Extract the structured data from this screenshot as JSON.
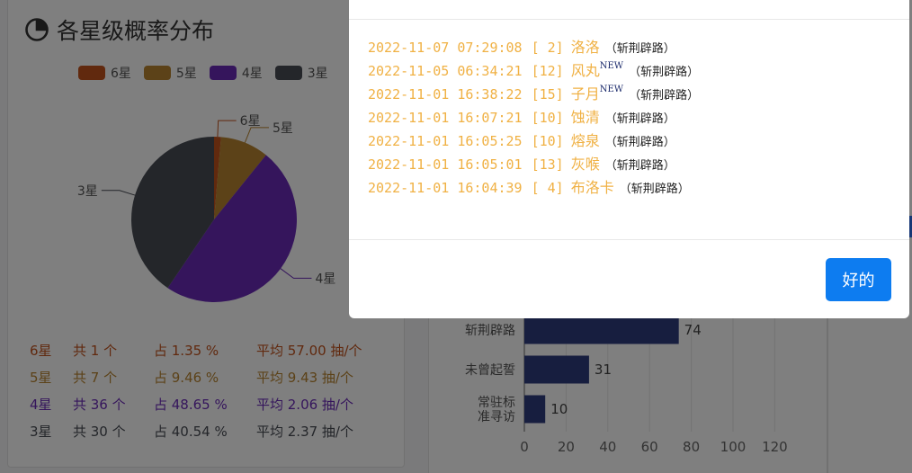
{
  "left_card": {
    "title": "各星级概率分布",
    "icon": "pie-chart-icon",
    "legend": [
      {
        "label": "6星",
        "color": "#c2521c"
      },
      {
        "label": "5星",
        "color": "#b88430"
      },
      {
        "label": "4星",
        "color": "#6b2bb8"
      },
      {
        "label": "3星",
        "color": "#484c55"
      }
    ],
    "stats": [
      {
        "name": "6星",
        "count": "共 1 个",
        "pct": "占 1.35 %",
        "avg": "平均 57.00 抽/个",
        "color": "#c2521c"
      },
      {
        "name": "5星",
        "count": "共 7 个",
        "pct": "占 9.46 %",
        "avg": "平均 9.43 抽/个",
        "color": "#b88430"
      },
      {
        "name": "4星",
        "count": "共 36 个",
        "pct": "占 48.65 %",
        "avg": "平均 2.06 抽/个",
        "color": "#6b2bb8"
      },
      {
        "name": "3星",
        "count": "共 30 个",
        "pct": "占 40.54 %",
        "avg": "平均 2.37 抽/个",
        "color": "#484c55"
      }
    ]
  },
  "chart_data": [
    {
      "type": "pie",
      "categories": [
        "6星",
        "5星",
        "4星",
        "3星"
      ],
      "values": [
        1,
        7,
        36,
        30
      ],
      "percents": [
        1.35,
        9.46,
        48.65,
        40.54
      ],
      "colors": [
        "#c2521c",
        "#b88430",
        "#6b2bb8",
        "#484c55"
      ],
      "legend": "top"
    },
    {
      "type": "bar",
      "orientation": "horizontal",
      "categories": [
        "斩荆辟路",
        "未曾起誓",
        "常驻标准寻访"
      ],
      "category_labels": [
        [
          "斩荆辟路"
        ],
        [
          "未曾起誓"
        ],
        [
          "常驻标",
          "准寻访"
        ]
      ],
      "values": [
        74,
        31,
        10
      ],
      "xlim": [
        0,
        120
      ],
      "xticks": [
        0,
        20,
        40,
        60,
        80,
        100,
        120
      ],
      "color": "#2e3d7f",
      "grid": true
    }
  ],
  "modal": {
    "records": [
      {
        "time": "2022-11-07 07:29:08",
        "rank": "[ 2]",
        "name": "洛洛",
        "is_new": false,
        "pool": "（斩荆辟路）"
      },
      {
        "time": "2022-11-05 06:34:21",
        "rank": "[12]",
        "name": "风丸",
        "is_new": true,
        "pool": "（斩荆辟路）"
      },
      {
        "time": "2022-11-01 16:38:22",
        "rank": "[15]",
        "name": "子月",
        "is_new": true,
        "pool": "（斩荆辟路）"
      },
      {
        "time": "2022-11-01 16:07:21",
        "rank": "[10]",
        "name": "蚀清",
        "is_new": false,
        "pool": "（斩荆辟路）"
      },
      {
        "time": "2022-11-01 16:05:25",
        "rank": "[10]",
        "name": "熔泉",
        "is_new": false,
        "pool": "（斩荆辟路）"
      },
      {
        "time": "2022-11-01 16:05:01",
        "rank": "[13]",
        "name": "灰喉",
        "is_new": false,
        "pool": "（斩荆辟路）"
      },
      {
        "time": "2022-11-01 16:04:39",
        "rank": "[ 4]",
        "name": "布洛卡",
        "is_new": false,
        "pool": "（斩荆辟路）"
      }
    ],
    "new_badge": "NEW",
    "ok_label": "好的"
  }
}
